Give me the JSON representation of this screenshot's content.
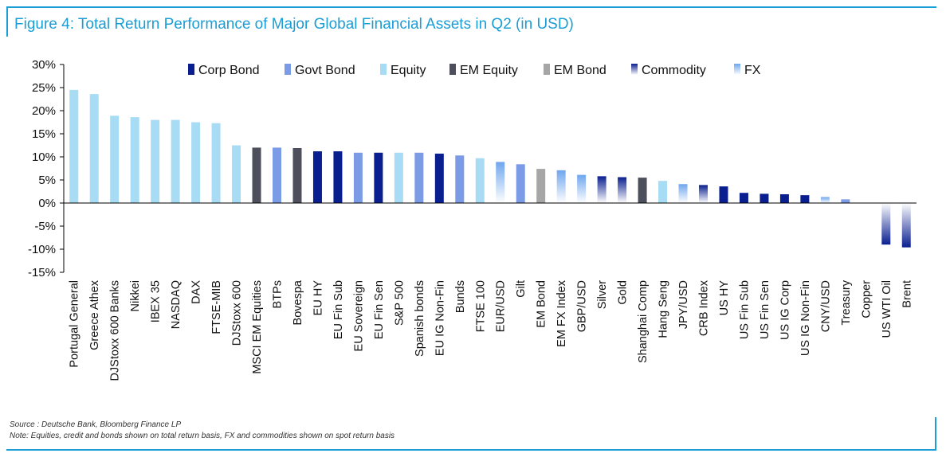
{
  "figure": {
    "title": "Figure 4: Total Return Performance of Major Global Financial Assets in Q2 (in USD)",
    "source": "Source : Deutsche Bank, Bloomberg Finance LP",
    "note": "Note: Equities, credit and bonds shown on total return basis, FX and commodities shown on spot return basis"
  },
  "colors": {
    "Corp Bond": "#0a1f8f",
    "Govt Bond": "#7b9be6",
    "Equity": "#a8dcf5",
    "EM Equity": "#4d4f5c",
    "EM Bond": "#a6a6a6",
    "Commodity": "#0a1f8f",
    "FX": "#6fa6ee",
    "axis": "#000000",
    "title": "#1b9ed6"
  },
  "chart_data": {
    "type": "bar",
    "title": "Figure 4: Total Return Performance of Major Global Financial Assets in Q2 (in USD)",
    "xlabel": "",
    "ylabel": "",
    "ylim": [
      -15,
      30
    ],
    "yticks": [
      -15,
      -10,
      -5,
      0,
      5,
      10,
      15,
      20,
      25,
      30
    ],
    "ytick_labels": [
      "-15%",
      "-10%",
      "-5%",
      "0%",
      "5%",
      "10%",
      "15%",
      "20%",
      "25%",
      "30%"
    ],
    "grid": false,
    "legend_position": "top",
    "legend": [
      "Corp Bond",
      "Govt Bond",
      "Equity",
      "EM Equity",
      "EM Bond",
      "Commodity",
      "FX"
    ],
    "categories": [
      "Portugal General",
      "Greece Athex",
      "DJStoxx 600 Banks",
      "Nikkei",
      "IBEX 35",
      "NASDAQ",
      "DAX",
      "FTSE-MIB",
      "DJStoxx 600",
      "MSCI EM Equities",
      "BTPs",
      "Bovespa",
      "EU HY",
      "EU Fin Sub",
      "EU Sovereign",
      "EU Fin Sen",
      "S&P 500",
      "Spanish bonds",
      "EU IG Non-Fin",
      "Bunds",
      "FTSE 100",
      "EUR/USD",
      "Gilt",
      "EM Bond",
      "EM FX Index",
      "GBP/USD",
      "Silver",
      "Gold",
      "Shanghai Comp",
      "Hang Seng",
      "JPY/USD",
      "CRB Index",
      "US HY",
      "US Fin Sub",
      "US Fin Sen",
      "US IG Corp",
      "US IG Non-Fin",
      "CNY/USD",
      "Treasury",
      "Copper",
      "US WTI Oil",
      "Brent"
    ],
    "values": [
      24.5,
      23.6,
      18.9,
      18.6,
      18.0,
      18.0,
      17.5,
      17.3,
      12.5,
      12.0,
      12.0,
      11.9,
      11.2,
      11.2,
      10.9,
      10.9,
      10.9,
      10.9,
      10.7,
      10.3,
      9.7,
      8.9,
      8.4,
      7.4,
      7.1,
      6.1,
      5.8,
      5.6,
      5.5,
      4.8,
      4.1,
      3.9,
      3.6,
      2.2,
      2.0,
      1.9,
      1.7,
      1.3,
      0.8,
      0.0,
      -9.0,
      -9.6
    ],
    "asset_class": [
      "Equity",
      "Equity",
      "Equity",
      "Equity",
      "Equity",
      "Equity",
      "Equity",
      "Equity",
      "Equity",
      "EM Equity",
      "Govt Bond",
      "EM Equity",
      "Corp Bond",
      "Corp Bond",
      "Govt Bond",
      "Corp Bond",
      "Equity",
      "Govt Bond",
      "Corp Bond",
      "Govt Bond",
      "Equity",
      "FX",
      "Govt Bond",
      "EM Bond",
      "FX",
      "FX",
      "Commodity",
      "Commodity",
      "EM Equity",
      "Equity",
      "FX",
      "Commodity",
      "Corp Bond",
      "Corp Bond",
      "Corp Bond",
      "Corp Bond",
      "Corp Bond",
      "FX",
      "Govt Bond",
      "Commodity",
      "Commodity",
      "Commodity"
    ]
  }
}
